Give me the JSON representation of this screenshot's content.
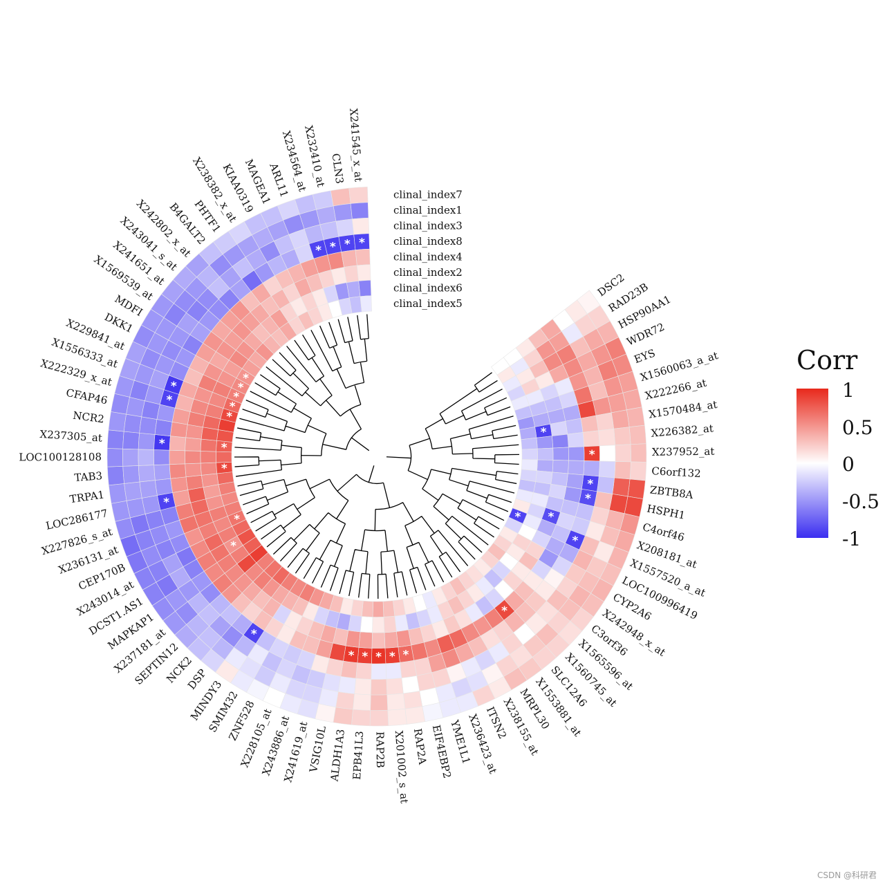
{
  "chart_data": {
    "type": "circular-heatmap",
    "title": "",
    "genes": [
      "DSC2",
      "RAD23B",
      "HSP90AA1",
      "WDR72",
      "EYS",
      "X1560063_a_at",
      "X222266_at",
      "X1570484_at",
      "X226382_at",
      "X237952_at",
      "C6orf132",
      "ZBTB8A",
      "HSPH1",
      "C4orf46",
      "X208181_at",
      "X1557520_a_at",
      "LOC100996419",
      "CYP2A6",
      "X242948_x_at",
      "C3orf36",
      "X1565596_at",
      "X1560745_at",
      "SLC12A6",
      "X1553881_at",
      "MRPL30",
      "X238155_at",
      "ITSN2",
      "X236423_at",
      "YME1L1",
      "EIF4EBP2",
      "RAP2A",
      "X201002_s_at",
      "RAP2B",
      "EPB41L3",
      "ALDH1A3",
      "VSIG10L",
      "X241619_at",
      "X243886_at",
      "X228105_at",
      "ZNF528",
      "SMIM32",
      "MINDY3",
      "DSP",
      "NCK2",
      "SEPTIN12",
      "X237181_at",
      "MAPKAP1",
      "DCST1.AS1",
      "X243014_at",
      "CEP170B",
      "X236131_at",
      "X227826_s_at",
      "LOC286177",
      "TRPA1",
      "TAB3",
      "LOC100128108",
      "X237305_at",
      "NCR2",
      "CFAP46",
      "X222329_x_at",
      "X1556333_at",
      "X229841_at",
      "DKK1",
      "MDFI",
      "X1569539_at",
      "X241651_at",
      "X243041_s_at",
      "X242802_x_at",
      "B4GALT2",
      "PHTF1",
      "X238382_x_at",
      "KIAA0319",
      "MAGEA1",
      "ARL11",
      "X234564_at",
      "X232410_at",
      "CLN3",
      "X241545_x_at"
    ],
    "rings_outer_to_inner": [
      "clinal_index7",
      "clinal_index1",
      "clinal_index3",
      "clinal_index8",
      "clinal_index4",
      "clinal_index2",
      "clinal_index6",
      "clinal_index5"
    ],
    "ring_values": [
      [
        0.05,
        0.2,
        0.35,
        0.6,
        0.55,
        0.45,
        0.4,
        0.35,
        0.3,
        0.3,
        0.2,
        0.8,
        0.85,
        0.5,
        0.4,
        0.35,
        0.3,
        0.35,
        0.3,
        0.2,
        0.15,
        0.2,
        0.2,
        0.25,
        0.3,
        0.1,
        0.2,
        -0.1,
        -0.1,
        -0.05,
        0.1,
        0.1,
        0.2,
        0.2,
        0.25,
        0.05,
        -0.15,
        -0.1,
        0.0,
        -0.05,
        -0.1,
        0.1,
        -0.2,
        -0.3,
        -0.4,
        -0.5,
        -0.55,
        -0.6,
        -0.6,
        -0.65,
        -0.7,
        -0.55,
        -0.5,
        -0.5,
        -0.6,
        -0.55,
        -0.6,
        -0.5,
        -0.55,
        -0.5,
        -0.45,
        -0.45,
        -0.55,
        -0.5,
        -0.5,
        -0.45,
        -0.4,
        -0.45,
        -0.3,
        -0.25,
        -0.2,
        -0.3,
        -0.3,
        -0.2,
        -0.3,
        -0.25,
        0.3,
        0.2
      ],
      [
        0.1,
        0.2,
        0.4,
        0.5,
        0.6,
        0.5,
        0.45,
        0.4,
        0.25,
        0.2,
        0.3,
        0.75,
        0.85,
        0.35,
        0.3,
        0.1,
        0.25,
        0.3,
        0.35,
        0.3,
        0.2,
        0.3,
        0.25,
        0.15,
        0.2,
        0.05,
        -0.15,
        -0.2,
        -0.1,
        0.0,
        0.15,
        0.1,
        0.3,
        0.1,
        0.2,
        -0.1,
        -0.2,
        -0.2,
        -0.1,
        -0.25,
        -0.15,
        -0.1,
        -0.35,
        -0.3,
        -0.35,
        -0.55,
        -0.5,
        -0.65,
        -0.6,
        -0.55,
        -0.6,
        -0.65,
        -0.5,
        -0.45,
        -0.5,
        -0.45,
        -0.6,
        -0.55,
        -0.5,
        -0.6,
        -0.5,
        -0.55,
        -0.5,
        -0.5,
        -0.6,
        -0.55,
        -0.5,
        -0.35,
        -0.55,
        -0.5,
        -0.45,
        -0.4,
        -0.45,
        -0.55,
        -0.5,
        -0.4,
        -0.5,
        -0.6
      ],
      [
        0.0,
        -0.1,
        0.3,
        0.4,
        0.35,
        0.3,
        0.5,
        0.2,
        0.15,
        0.0,
        -0.2,
        -0.3,
        0.3,
        0.2,
        0.1,
        0.3,
        0.35,
        0.25,
        0.2,
        0.3,
        0.15,
        0.1,
        0.0,
        0.2,
        -0.1,
        -0.2,
        -0.1,
        0.05,
        0.2,
        0.2,
        0.0,
        0.15,
        0.25,
        0.1,
        -0.1,
        -0.15,
        -0.25,
        -0.3,
        -0.2,
        -0.3,
        -0.1,
        -0.35,
        -0.55,
        -0.45,
        -0.3,
        -0.35,
        -0.5,
        -0.4,
        -0.45,
        -0.6,
        -0.55,
        -0.6,
        -0.5,
        -0.45,
        -0.4,
        -0.35,
        -0.5,
        -0.55,
        -0.6,
        -0.5,
        -0.45,
        -0.5,
        -0.55,
        -0.5,
        -0.45,
        -0.6,
        -0.55,
        -0.3,
        -0.45,
        -0.3,
        -0.4,
        -0.55,
        -0.3,
        -0.2,
        -0.35,
        -0.3,
        -0.2,
        0.1
      ],
      [
        0.4,
        0.45,
        0.6,
        0.55,
        0.5,
        0.65,
        0.85,
        0.3,
        0.2,
        0.9,
        -0.4,
        -0.9,
        -0.85,
        -0.3,
        -0.25,
        -0.9,
        -0.4,
        -0.2,
        0.05,
        0.1,
        0.25,
        0.3,
        0.35,
        0.2,
        0.15,
        0.3,
        0.4,
        0.55,
        0.45,
        0.2,
        0.2,
        -0.1,
        -0.1,
        0.2,
        0.3,
        0.2,
        0.1,
        -0.2,
        -0.25,
        -0.2,
        -0.3,
        -0.9,
        -0.4,
        -0.3,
        -0.35,
        -0.55,
        -0.5,
        -0.6,
        -0.65,
        -0.55,
        -0.5,
        -0.6,
        -0.9,
        -0.5,
        -0.45,
        -0.55,
        -0.95,
        -0.6,
        -0.5,
        -0.9,
        -0.95,
        -0.55,
        -0.5,
        -0.6,
        -0.45,
        -0.5,
        -0.55,
        -0.6,
        -0.45,
        -0.7,
        -0.5,
        -0.35,
        -0.4,
        -0.2,
        -0.9,
        -0.9,
        -0.9,
        -0.9
      ],
      [
        0.3,
        0.5,
        0.55,
        0.4,
        -0.1,
        -0.2,
        -0.4,
        -0.3,
        -0.2,
        -0.5,
        -0.4,
        -0.45,
        -0.5,
        -0.3,
        -0.2,
        -0.3,
        -0.4,
        -0.5,
        -0.2,
        0.1,
        0.3,
        0.4,
        0.85,
        0.6,
        0.5,
        0.55,
        0.7,
        0.75,
        0.55,
        0.65,
        0.7,
        0.9,
        0.95,
        0.9,
        0.92,
        0.85,
        0.45,
        0.3,
        0.3,
        0.1,
        0.2,
        0.3,
        0.2,
        0.3,
        0.5,
        0.6,
        0.55,
        0.6,
        0.55,
        0.5,
        0.65,
        0.6,
        0.45,
        0.5,
        0.55,
        0.45,
        0.35,
        0.5,
        0.45,
        0.35,
        0.4,
        0.3,
        0.35,
        0.45,
        0.5,
        0.4,
        0.45,
        0.5,
        0.3,
        0.4,
        0.2,
        0.3,
        0.35,
        0.45,
        0.5,
        0.55,
        0.35,
        0.3
      ],
      [
        0.1,
        0.2,
        0.3,
        0.1,
        -0.2,
        -0.3,
        -0.4,
        -0.2,
        -0.6,
        -0.5,
        -0.4,
        -0.3,
        -0.2,
        -0.3,
        -0.85,
        -0.4,
        -0.2,
        0.2,
        0.3,
        0.1,
        0.2,
        0.0,
        -0.2,
        -0.3,
        -0.1,
        0.15,
        0.25,
        0.1,
        0.2,
        0.3,
        0.5,
        0.4,
        0.3,
        0.45,
        0.5,
        0.3,
        0.4,
        0.3,
        0.2,
        0.1,
        -0.2,
        0.35,
        0.3,
        0.4,
        0.5,
        0.55,
        0.6,
        0.65,
        0.7,
        0.6,
        0.65,
        0.7,
        0.75,
        0.6,
        0.5,
        0.55,
        0.45,
        0.5,
        0.6,
        0.55,
        0.5,
        0.6,
        0.5,
        0.4,
        0.5,
        0.45,
        0.5,
        0.45,
        0.4,
        0.3,
        0.35,
        0.2,
        0.4,
        0.3,
        0.2,
        0.1,
        0.2,
        0.1
      ],
      [
        0.0,
        -0.1,
        0.1,
        0.2,
        -0.1,
        -0.3,
        -0.4,
        -0.9,
        -0.5,
        -0.3,
        -0.4,
        -0.2,
        -0.3,
        -0.1,
        -0.2,
        -0.1,
        0.0,
        0.2,
        0.1,
        0.0,
        -0.2,
        -0.3,
        -0.1,
        0.1,
        0.2,
        0.3,
        0.2,
        -0.1,
        -0.2,
        -0.3,
        -0.1,
        0.2,
        0.1,
        0.0,
        -0.2,
        -0.4,
        -0.3,
        -0.2,
        0.1,
        0.3,
        0.35,
        0.4,
        0.5,
        0.6,
        0.55,
        0.85,
        0.6,
        0.5,
        0.6,
        0.55,
        0.6,
        0.5,
        0.45,
        0.5,
        0.55,
        0.6,
        0.65,
        0.75,
        0.7,
        0.6,
        0.55,
        0.6,
        0.5,
        0.45,
        0.55,
        0.5,
        0.4,
        0.3,
        0.35,
        0.45,
        0.2,
        0.1,
        0.2,
        0.1,
        -0.2,
        -0.5,
        -0.4,
        -0.6
      ],
      [
        0.0,
        0.1,
        -0.1,
        -0.2,
        -0.1,
        -0.3,
        -0.5,
        -0.4,
        -0.3,
        -0.2,
        -0.1,
        -0.2,
        -0.3,
        -0.1,
        0.1,
        -0.9,
        -0.2,
        0.1,
        0.2,
        0.3,
        0.2,
        0.1,
        0.15,
        0.2,
        0.3,
        0.2,
        0.1,
        -0.1,
        0.0,
        0.1,
        0.2,
        0.3,
        0.4,
        0.3,
        0.2,
        0.1,
        0.3,
        0.4,
        0.5,
        0.6,
        0.55,
        0.6,
        0.7,
        0.65,
        0.6,
        0.9,
        0.75,
        0.8,
        0.7,
        0.65,
        0.6,
        0.55,
        0.6,
        0.7,
        0.85,
        0.7,
        0.75,
        0.8,
        0.9,
        0.85,
        0.7,
        0.6,
        0.55,
        0.5,
        0.45,
        0.4,
        0.5,
        0.35,
        0.3,
        0.4,
        0.2,
        0.3,
        0.2,
        0.1,
        0.0,
        -0.2,
        -0.3,
        -0.1
      ]
    ],
    "significant_marks": [
      {
        "ring": "clinal_index8",
        "genes": [
          "X237952_at",
          "ZBTB8A",
          "HSPH1",
          "X1557520_a_at",
          "MINDY3",
          "LOC286177",
          "X237305_at",
          "X222329_x_at",
          "X1556333_at",
          "X234564_at",
          "X232410_at",
          "CLN3",
          "X241545_x_at"
        ]
      },
      {
        "ring": "clinal_index4",
        "genes": [
          "SLC12A6",
          "RAP2A",
          "X201002_s_at",
          "RAP2B",
          "EPB41L3",
          "ALDH1A3"
        ]
      },
      {
        "ring": "clinal_index2",
        "genes": [
          "X208181_at"
        ]
      },
      {
        "ring": "clinal_index6",
        "genes": [
          "X1570484_at",
          "DCST1.AS1"
        ]
      },
      {
        "ring": "clinal_index5",
        "genes": [
          "X1557520_a_at",
          "CEP170B",
          "TAB3",
          "X237305_at",
          "X222329_x_at",
          "X1556333_at",
          "X229841_at",
          "DKK1",
          "MDFI"
        ]
      },
      {
        "ring": "clinal_index7",
        "genes": []
      },
      {
        "ring": "clinal_index1",
        "genes": []
      },
      {
        "ring": "clinal_index3",
        "genes": []
      }
    ],
    "legend": {
      "title": "Corr",
      "ticks": [
        "1",
        "0.5",
        "0",
        "-0.5",
        "-1"
      ],
      "range": [
        -1,
        1
      ],
      "placement": "right"
    },
    "colors": {
      "low": "#3b2ef0",
      "mid": "#ffffff",
      "high": "#e8291c"
    }
  },
  "star_symbol": "*",
  "watermark": "CSDN @科研君"
}
